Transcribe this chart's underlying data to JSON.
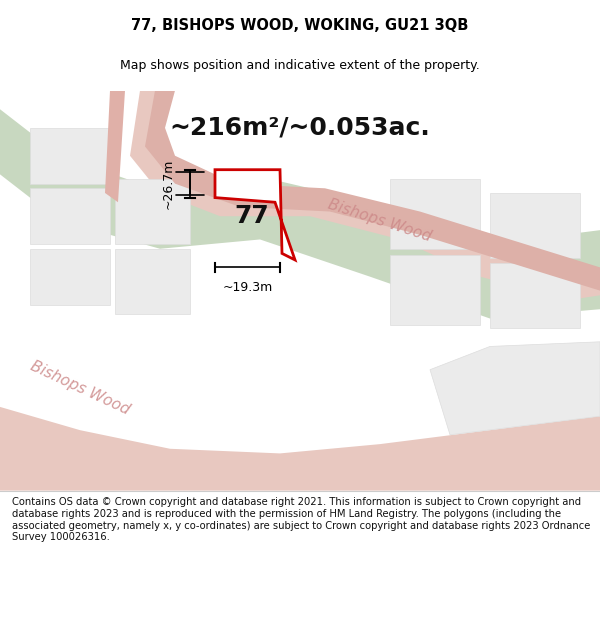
{
  "title": "77, BISHOPS WOOD, WOKING, GU21 3QB",
  "subtitle": "Map shows position and indicative extent of the property.",
  "area_text": "~216m²/~0.053ac.",
  "property_number": "77",
  "dim_width": "~19.3m",
  "dim_height": "~26.7m",
  "road_label_1": "Bishops Wood",
  "road_label_2": "Bishops Wood",
  "footer": "Contains OS data © Crown copyright and database right 2021. This information is subject to Crown copyright and database rights 2023 and is reproduced with the permission of HM Land Registry. The polygons (including the associated geometry, namely x, y co-ordinates) are subject to Crown copyright and database rights 2023 Ordnance Survey 100026316.",
  "bg_color": "#f5f0eb",
  "map_bg": "#ffffff",
  "road_color": "#d4b8b8",
  "green_color": "#c8d8c0",
  "plot_color": "#e8e0d8",
  "property_outline_color": "#cc0000",
  "road_line_color": "#e8a0a0",
  "dim_line_color": "#000000",
  "text_color": "#000000",
  "footer_bg": "#ffffff"
}
